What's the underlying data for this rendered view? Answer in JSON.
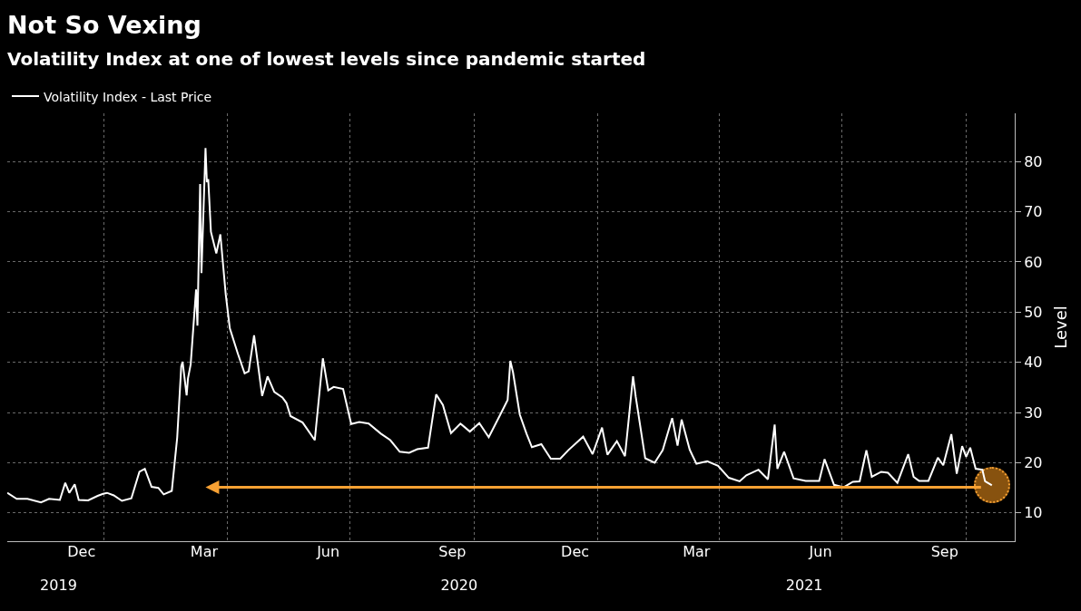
{
  "chart_data": {
    "type": "line",
    "title": "Not So Vexing",
    "subtitle": "Volatility Index at one of lowest levels since pandemic started",
    "ylabel": "Level",
    "legend": "top left",
    "grid": true,
    "marker": "none",
    "line_style": "solid",
    "x": [
      "2019-10-21",
      "2019-10-28",
      "2019-11-05",
      "2019-11-15",
      "2019-11-21",
      "2019-11-29",
      "2019-12-03",
      "2019-12-06",
      "2019-12-10",
      "2019-12-13",
      "2019-12-20",
      "2019-12-27",
      "2019-12-31",
      "2020-01-03",
      "2020-01-08",
      "2020-01-14",
      "2020-01-21",
      "2020-01-27",
      "2020-01-31",
      "2020-02-05",
      "2020-02-10",
      "2020-02-14",
      "2020-02-20",
      "2020-02-24",
      "2020-02-27",
      "2020-02-28",
      "2020-03-02",
      "2020-03-03",
      "2020-03-05",
      "2020-03-09",
      "2020-03-10",
      "2020-03-12",
      "2020-03-13",
      "2020-03-16",
      "2020-03-17",
      "2020-03-18",
      "2020-03-20",
      "2020-03-24",
      "2020-03-27",
      "2020-03-31",
      "2020-04-03",
      "2020-04-09",
      "2020-04-14",
      "2020-04-17",
      "2020-04-21",
      "2020-04-27",
      "2020-05-01",
      "2020-05-06",
      "2020-05-12",
      "2020-05-15",
      "2020-05-18",
      "2020-05-27",
      "2020-06-05",
      "2020-06-11",
      "2020-06-15",
      "2020-06-19",
      "2020-06-26",
      "2020-07-02",
      "2020-07-08",
      "2020-07-15",
      "2020-07-24",
      "2020-07-31",
      "2020-08-07",
      "2020-08-14",
      "2020-08-20",
      "2020-08-28",
      "2020-09-03",
      "2020-09-08",
      "2020-09-14",
      "2020-09-21",
      "2020-09-28",
      "2020-10-05",
      "2020-10-12",
      "2020-10-20",
      "2020-10-26",
      "2020-10-28",
      "2020-10-30",
      "2020-11-04",
      "2020-11-09",
      "2020-11-13",
      "2020-11-20",
      "2020-11-27",
      "2020-12-04",
      "2020-12-10",
      "2020-12-21",
      "2020-12-28",
      "2021-01-04",
      "2021-01-08",
      "2021-01-15",
      "2021-01-21",
      "2021-01-27",
      "2021-01-29",
      "2021-02-05",
      "2021-02-12",
      "2021-02-18",
      "2021-02-25",
      "2021-03-01",
      "2021-03-04",
      "2021-03-10",
      "2021-03-15",
      "2021-03-23",
      "2021-03-31",
      "2021-04-08",
      "2021-04-16",
      "2021-04-21",
      "2021-04-30",
      "2021-05-07",
      "2021-05-12",
      "2021-05-14",
      "2021-05-19",
      "2021-05-26",
      "2021-06-04",
      "2021-06-14",
      "2021-06-18",
      "2021-06-25",
      "2021-07-02",
      "2021-07-09",
      "2021-07-14",
      "2021-07-19",
      "2021-07-23",
      "2021-07-30",
      "2021-08-04",
      "2021-08-11",
      "2021-08-19",
      "2021-08-23",
      "2021-08-27",
      "2021-09-03",
      "2021-09-10",
      "2021-09-14",
      "2021-09-20",
      "2021-09-24",
      "2021-09-28",
      "2021-10-01",
      "2021-10-04",
      "2021-10-08",
      "2021-10-13",
      "2021-10-15",
      "2021-10-19",
      "2021-10-20"
    ],
    "series": [
      {
        "name": "Volatility Index - Last Price",
        "color": "#ffffff",
        "values": [
          14.0,
          12.8,
          12.8,
          12.1,
          12.8,
          12.6,
          16.0,
          14.0,
          15.7,
          12.6,
          12.5,
          13.4,
          13.8,
          14.0,
          13.5,
          12.4,
          12.9,
          18.2,
          18.8,
          15.2,
          15.0,
          13.7,
          14.4,
          25.0,
          39.2,
          40.1,
          33.4,
          36.8,
          39.6,
          54.5,
          47.3,
          75.5,
          57.8,
          82.7,
          75.9,
          76.5,
          66.0,
          61.7,
          65.5,
          53.5,
          46.8,
          41.7,
          37.8,
          38.2,
          45.4,
          33.3,
          37.2,
          34.1,
          33.0,
          31.9,
          29.3,
          28.0,
          24.5,
          40.8,
          34.4,
          35.1,
          34.7,
          27.7,
          28.1,
          27.8,
          25.8,
          24.5,
          22.2,
          22.0,
          22.7,
          23.0,
          33.6,
          31.5,
          25.9,
          27.8,
          26.2,
          27.9,
          25.1,
          29.3,
          32.5,
          40.3,
          38.0,
          29.6,
          25.8,
          23.1,
          23.7,
          20.8,
          20.8,
          22.5,
          25.2,
          21.7,
          27.0,
          21.6,
          24.3,
          21.3,
          37.2,
          33.1,
          20.9,
          20.0,
          22.5,
          28.9,
          23.4,
          28.6,
          22.6,
          19.8,
          20.3,
          19.4,
          17.0,
          16.3,
          17.5,
          18.6,
          16.7,
          27.6,
          18.8,
          22.2,
          16.9,
          16.4,
          16.4,
          20.7,
          15.6,
          15.1,
          16.2,
          16.3,
          22.5,
          17.2,
          18.2,
          18.0,
          16.0,
          21.7,
          17.2,
          16.4,
          16.4,
          21.0,
          19.5,
          25.7,
          17.8,
          23.3,
          21.2,
          23.0,
          18.8,
          18.6,
          16.3,
          15.7,
          15.5
        ]
      }
    ],
    "ylim": [
      4.4,
      89.6
    ],
    "yticks": [
      10,
      20,
      30,
      40,
      50,
      60,
      70,
      80
    ],
    "xlim": [
      "2019-10-21",
      "2021-11-06"
    ],
    "xticks": [
      {
        "value": "2019-12-15",
        "label": "Dec"
      },
      {
        "value": "2020-03-15",
        "label": "Mar"
      },
      {
        "value": "2020-06-15",
        "label": "Jun"
      },
      {
        "value": "2020-09-15",
        "label": "Sep"
      },
      {
        "value": "2020-12-15",
        "label": "Dec"
      },
      {
        "value": "2021-03-15",
        "label": "Mar"
      },
      {
        "value": "2021-06-15",
        "label": "Jun"
      },
      {
        "value": "2021-09-15",
        "label": "Sep"
      },
      {
        "value": "2020-01-01",
        "label": null
      },
      {
        "value": "2020-04-01",
        "label": null
      },
      {
        "value": "2020-07-01",
        "label": null
      },
      {
        "value": "2020-10-01",
        "label": null
      },
      {
        "value": "2021-01-01",
        "label": null
      },
      {
        "value": "2021-04-01",
        "label": null
      },
      {
        "value": "2021-07-01",
        "label": null
      },
      {
        "value": "2021-10-01",
        "label": null
      }
    ],
    "x2lim": [
      "2019-10-21",
      "2021-11-06"
    ],
    "x2ticks": [
      {
        "value": "2019-11-28",
        "label": "2019"
      },
      {
        "value": "2020-09-20",
        "label": "2020"
      },
      {
        "value": "2021-06-03",
        "label": "2021"
      }
    ]
  }
}
